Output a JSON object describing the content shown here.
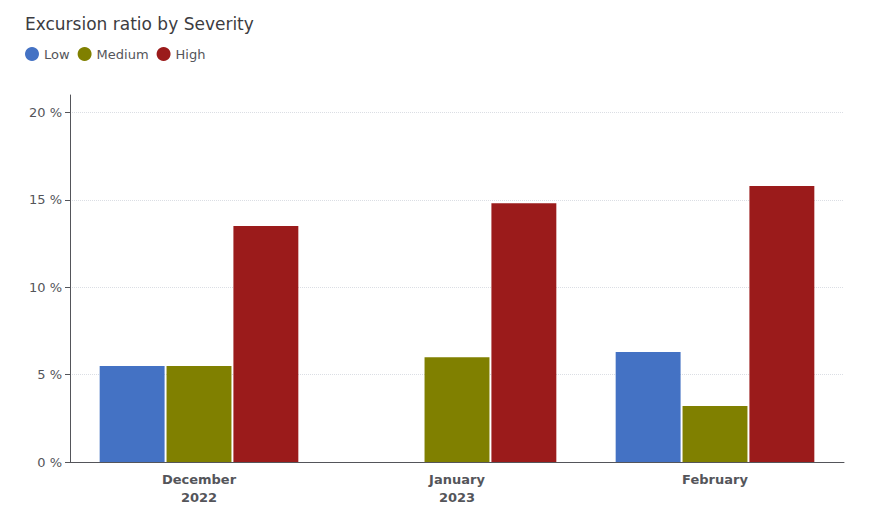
{
  "chart_data": {
    "type": "bar",
    "title": "Excursion ratio by Severity",
    "categories": [
      "December\n2022",
      "January\n2023",
      "February"
    ],
    "series": [
      {
        "name": "Low",
        "color": "#4472C4",
        "values": [
          5.5,
          0.0,
          6.3
        ]
      },
      {
        "name": "Medium",
        "color": "#808000",
        "values": [
          5.5,
          6.0,
          3.2
        ]
      },
      {
        "name": "High",
        "color": "#9B1B1B",
        "values": [
          13.5,
          14.8,
          15.8
        ]
      }
    ],
    "ylim": [
      0,
      21
    ],
    "yticks": [
      {
        "value": 0,
        "label": "0 %"
      },
      {
        "value": 5,
        "label": "5 %"
      },
      {
        "value": 10,
        "label": "10 %"
      },
      {
        "value": 15,
        "label": "15 %"
      },
      {
        "value": 20,
        "label": "20 %"
      }
    ],
    "grid": true,
    "legend": "upper left"
  }
}
